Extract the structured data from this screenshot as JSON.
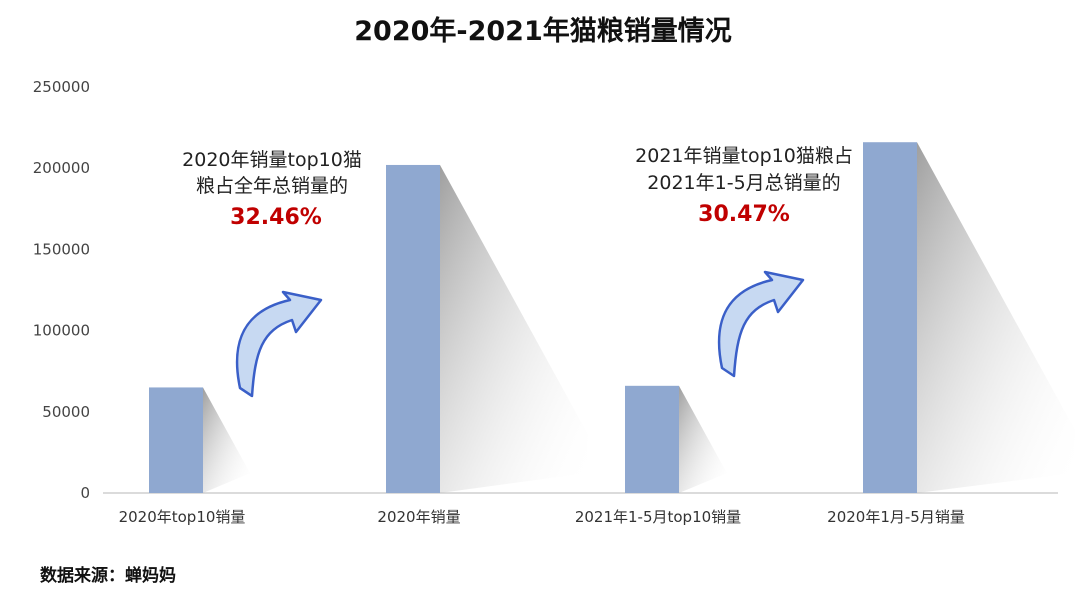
{
  "chart_data": {
    "type": "bar",
    "title": "2020年-2021年猫粮销量情况",
    "categories": [
      "2020年top10销量",
      "2020年销量",
      "2021年1-5月top10销量",
      "2020年1月-5月销量"
    ],
    "values": [
      65000,
      202000,
      66000,
      216000
    ],
    "y_ticks": [
      "250000",
      "200000",
      "150000",
      "100000",
      "50000",
      "0"
    ],
    "ylim": [
      0,
      250000
    ],
    "bar_color": "#8fa8d0",
    "annotations": [
      {
        "line1": "2020年销量top10猫",
        "line2": "粮占全年总销量的",
        "percent": "32.46%"
      },
      {
        "line1": "2021年销量top10猫粮占",
        "line2": "2021年1-5月总销量的",
        "percent": "30.47%"
      }
    ],
    "grid": false
  },
  "source": "数据来源：蝉妈妈",
  "colors": {
    "accent_red": "#c00000",
    "arrow_fill": "#c7d9f2",
    "arrow_stroke": "#3a5fc8"
  }
}
